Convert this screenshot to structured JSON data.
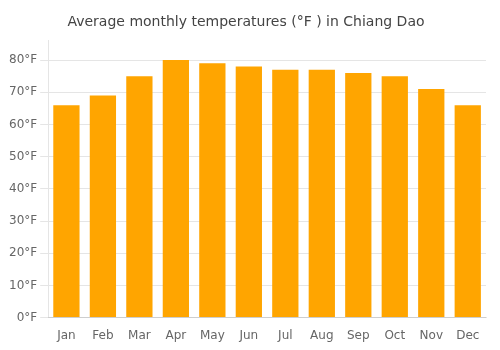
{
  "chart_data": {
    "type": "bar",
    "title": "Average monthly temperatures (°F ) in Chiang Dao",
    "categories": [
      "Jan",
      "Feb",
      "Mar",
      "Apr",
      "May",
      "Jun",
      "Jul",
      "Aug",
      "Sep",
      "Oct",
      "Nov",
      "Dec"
    ],
    "values": [
      66,
      69,
      75,
      80,
      79,
      78,
      77,
      77,
      76,
      75,
      71,
      66
    ],
    "color": "#FFA500",
    "ylim": [
      0,
      86
    ],
    "yticks": [
      {
        "value": 0,
        "label": "0°F"
      },
      {
        "value": 10,
        "label": "10°F"
      },
      {
        "value": 20,
        "label": "20°F"
      },
      {
        "value": 30,
        "label": "30°F"
      },
      {
        "value": 40,
        "label": "40°F"
      },
      {
        "value": 50,
        "label": "50°F"
      },
      {
        "value": 60,
        "label": "60°F"
      },
      {
        "value": 70,
        "label": "70°F"
      },
      {
        "value": 80,
        "label": "80°F"
      }
    ],
    "grid": "y"
  }
}
